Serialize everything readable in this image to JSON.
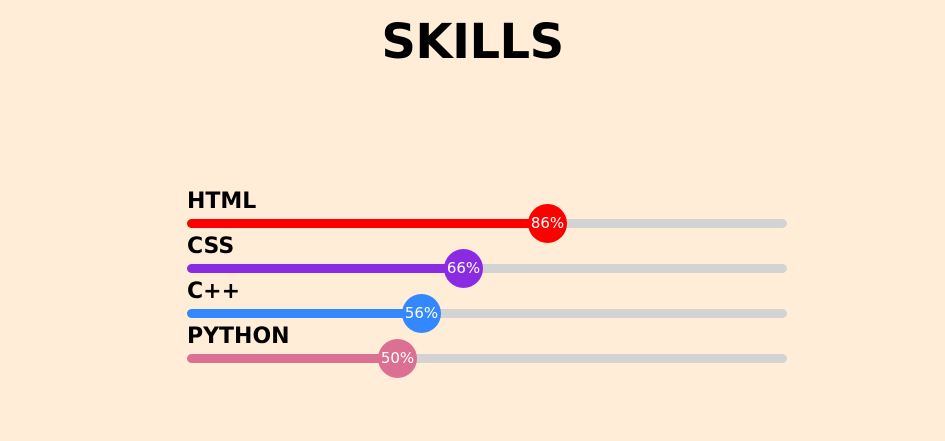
{
  "title": "SKILLS",
  "skills": [
    {
      "label": "HTML",
      "percent_label": "86%",
      "level": 0.6,
      "color": "#ff0000"
    },
    {
      "label": "CSS",
      "percent_label": "66%",
      "level": 0.46,
      "color": "#8a2be2"
    },
    {
      "label": "C++",
      "percent_label": "56%",
      "level": 0.39,
      "color": "#3388ff"
    },
    {
      "label": "PYTHON",
      "percent_label": "50%",
      "level": 0.35,
      "color": "#db7093"
    }
  ]
}
